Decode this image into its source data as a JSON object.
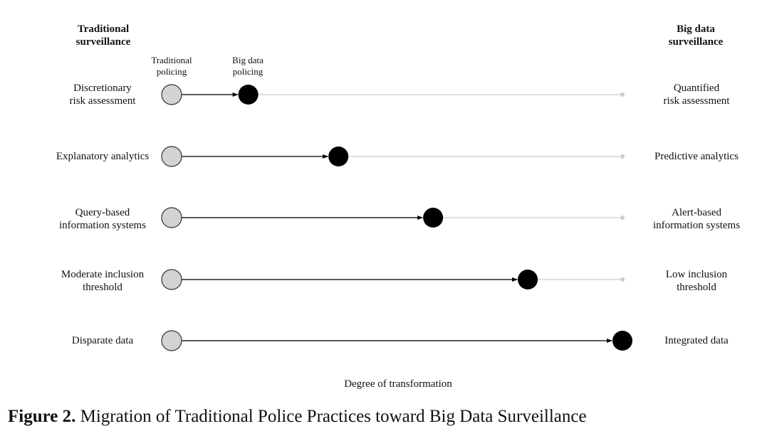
{
  "left_header": [
    "Traditional",
    "surveillance"
  ],
  "right_header": [
    "Big data",
    "surveillance"
  ],
  "sub_labels": {
    "traditional": [
      "Traditional",
      "policing"
    ],
    "bigdata": [
      "Big data",
      "policing"
    ]
  },
  "rows": [
    {
      "left": [
        "Discretionary",
        "risk assessment"
      ],
      "right": [
        "Quantified",
        "risk assessment"
      ],
      "degree": 0.17
    },
    {
      "left": [
        "Explanatory analytics"
      ],
      "right": [
        "Predictive analytics"
      ],
      "degree": 0.37
    },
    {
      "left": [
        "Query-based",
        "information systems"
      ],
      "right": [
        "Alert-based",
        "information systems"
      ],
      "degree": 0.58
    },
    {
      "left": [
        "Moderate inclusion",
        "threshold"
      ],
      "right": [
        "Low inclusion",
        "threshold"
      ],
      "degree": 0.79
    },
    {
      "left": [
        "Disparate data"
      ],
      "right": [
        "Integrated data"
      ],
      "degree": 1.0
    }
  ],
  "x_axis_label": "Degree of transformation",
  "caption": {
    "figure_label": "Figure 2.",
    "text": " Migration of Traditional Police Practices toward Big Data Surveillance"
  },
  "colors": {
    "traditional_node": "#d3d3d3",
    "bigdata_node": "#000000",
    "track": "#cccccc",
    "arrow": "#000000"
  }
}
